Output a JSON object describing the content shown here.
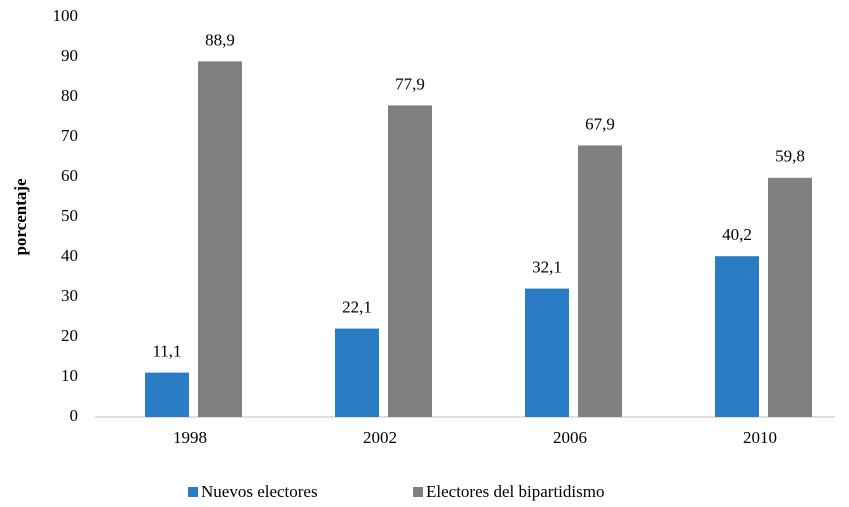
{
  "chart_data": {
    "type": "bar",
    "y_label": "porcentaje",
    "categories": [
      "1998",
      "2002",
      "2006",
      "2010"
    ],
    "series": [
      {
        "name": "Nuevos electores",
        "color": "#2a7dc4",
        "values": [
          11.1,
          22.1,
          32.1,
          40.2
        ],
        "value_labels": [
          "11,1",
          "22,1",
          "32,1",
          "40,2"
        ]
      },
      {
        "name": "Electores del bipartidismo",
        "color": "#808080",
        "values": [
          88.9,
          77.9,
          67.9,
          59.8
        ],
        "value_labels": [
          "88,9",
          "77,9",
          "67,9",
          "59,8"
        ]
      }
    ],
    "ylim": [
      0,
      100
    ],
    "yticks": [
      0,
      10,
      20,
      30,
      40,
      50,
      60,
      70,
      80,
      90,
      100
    ],
    "grid": false,
    "legend": "bottom"
  }
}
